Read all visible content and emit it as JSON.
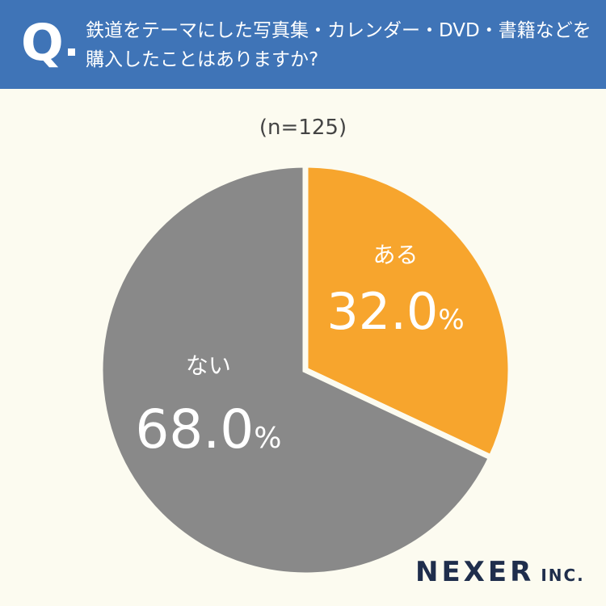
{
  "header": {
    "q_mark": "Q",
    "question": "鉄道をテーマにした写真集・カレンダー・DVD・書籍などを購入したことはありますか?"
  },
  "sample_size": "(n=125)",
  "chart_data": {
    "type": "pie",
    "categories": [
      "ある",
      "ない"
    ],
    "values": [
      32.0,
      68.0
    ],
    "labels": [
      "32.0%",
      "68.0%"
    ],
    "colors": [
      "#f7a52d",
      "#898989"
    ],
    "start_angle_deg": 0,
    "direction": "clockwise"
  },
  "brand": {
    "name": "NEXER",
    "suffix": "INC."
  },
  "colors": {
    "header_bg": "#3f74b7",
    "background": "#fcfbf0",
    "brand": "#1f2e4c"
  }
}
